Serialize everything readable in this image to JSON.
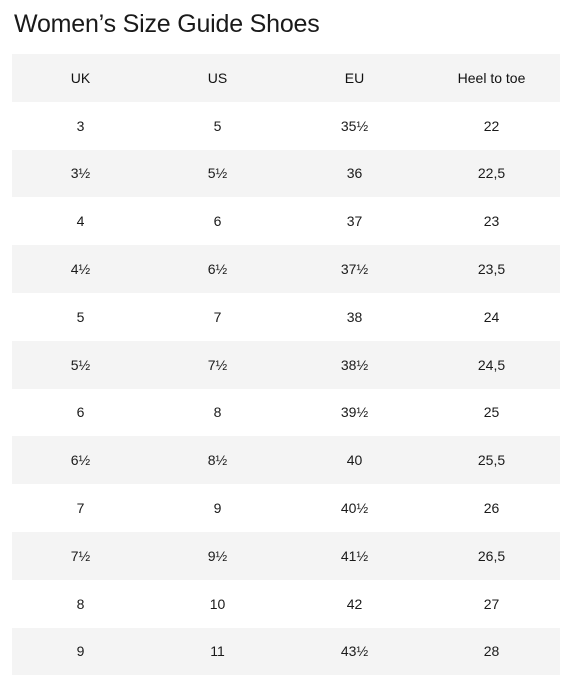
{
  "title": "Women’s Size Guide Shoes",
  "columns": [
    "UK",
    "US",
    "EU",
    "Heel to toe"
  ],
  "rows": [
    [
      "3",
      "5",
      "35½",
      "22"
    ],
    [
      "3½",
      "5½",
      "36",
      "22,5"
    ],
    [
      "4",
      "6",
      "37",
      "23"
    ],
    [
      "4½",
      "6½",
      "37½",
      "23,5"
    ],
    [
      "5",
      "7",
      "38",
      "24"
    ],
    [
      "5½",
      "7½",
      "38½",
      "24,5"
    ],
    [
      "6",
      "8",
      "39½",
      "25"
    ],
    [
      "6½",
      "8½",
      "40",
      "25,5"
    ],
    [
      "7",
      "9",
      "40½",
      "26"
    ],
    [
      "7½",
      "9½",
      "41½",
      "26,5"
    ],
    [
      "8",
      "10",
      "42",
      "27"
    ],
    [
      "9",
      "11",
      "43½",
      "28"
    ]
  ],
  "colors": {
    "stripe": "#f4f4f4",
    "text": "#1a1a1a",
    "background": "#ffffff"
  }
}
